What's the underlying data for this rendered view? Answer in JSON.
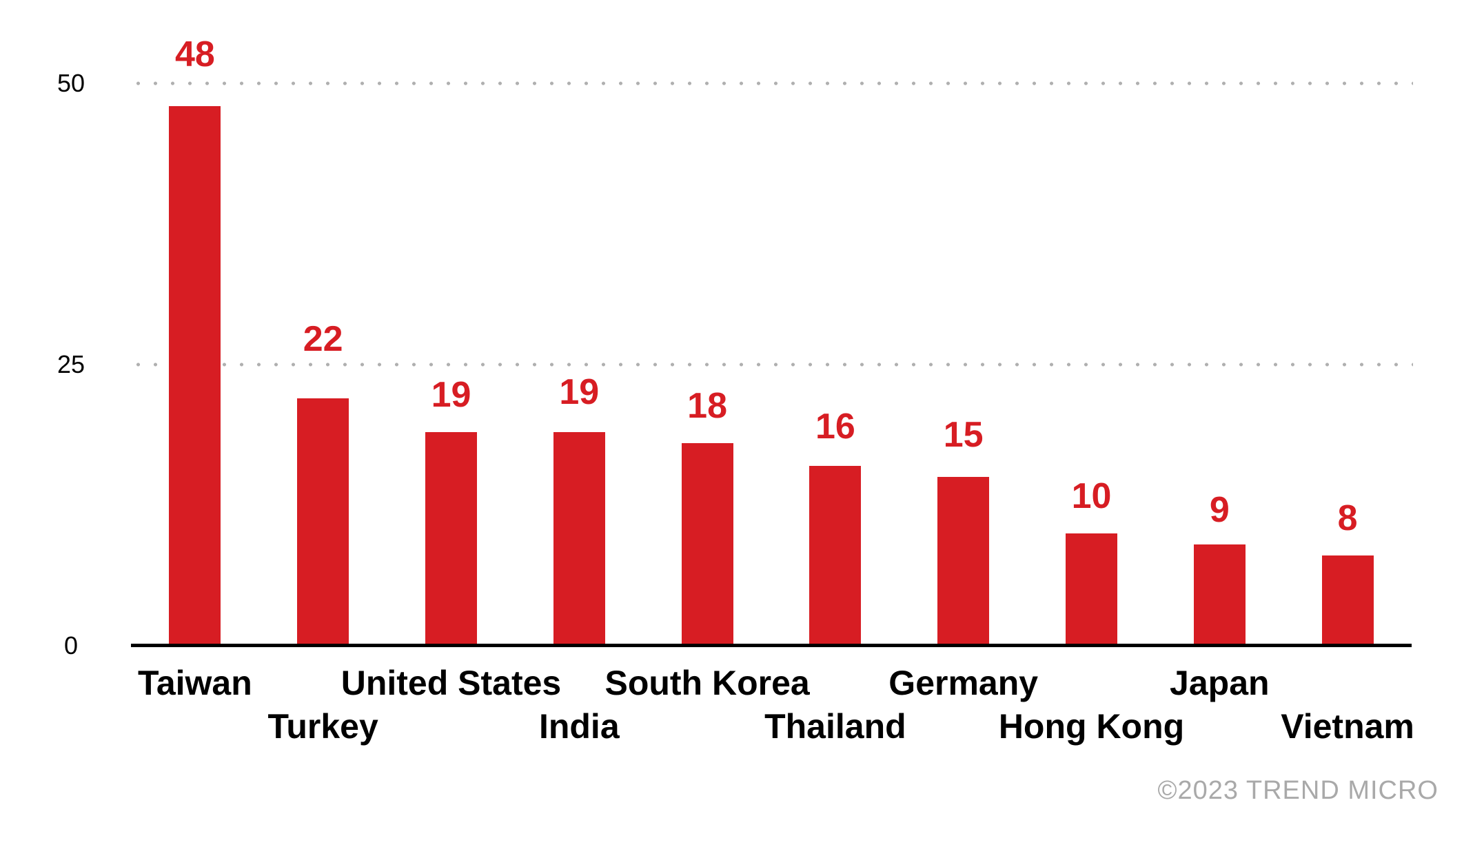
{
  "chart_data": {
    "type": "bar",
    "categories": [
      "Taiwan",
      "Turkey",
      "United States",
      "India",
      "South Korea",
      "Thailand",
      "Germany",
      "Hong Kong",
      "Japan",
      "Vietnam"
    ],
    "values": [
      48,
      22,
      19,
      19,
      18,
      16,
      15,
      10,
      9,
      8
    ],
    "title": "",
    "xlabel": "",
    "ylabel": "",
    "yticks": [
      50,
      25,
      0
    ],
    "ylim": [
      0,
      50
    ],
    "grid": "horizontal dotted lines at 25 and 50",
    "legend": "none",
    "bar_color": "#d71d23",
    "value_label_color": "#d71d23",
    "gridline_color": "#b0b0b0",
    "axis_color": "#000000",
    "tick_label_color": "#000000",
    "category_label_color": "#000000"
  },
  "footer": {
    "copyright": "©2023 TREND MICRO",
    "color": "#a9a9a9"
  }
}
